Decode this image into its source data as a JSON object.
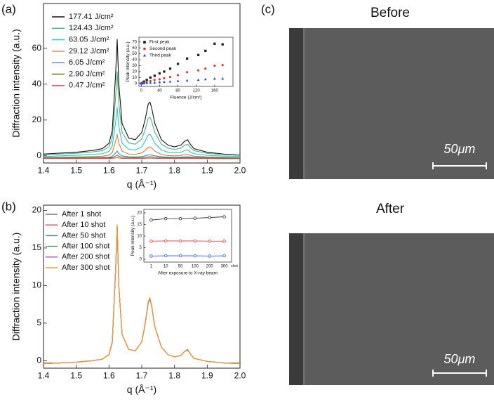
{
  "chart_data": [
    {
      "type": "line",
      "xlabel": "q (Å⁻¹)",
      "ylabel": "Diffraction intensity (a.u.)",
      "legend": "upper left",
      "xlim": [
        1.4,
        2.0
      ],
      "xticks": [
        1.4,
        1.5,
        1.6,
        1.7,
        1.8,
        1.9,
        {
          "value": 2,
          "label": "2.0"
        }
      ],
      "ylim": [
        -4,
        85
      ],
      "yticks": [
        0,
        20,
        40,
        60
      ],
      "x": [
        1.4,
        1.45,
        1.5,
        1.55,
        1.58,
        1.6,
        1.61,
        1.62,
        1.625,
        1.63,
        1.64,
        1.66,
        1.68,
        1.7,
        1.71,
        1.72,
        1.725,
        1.73,
        1.74,
        1.76,
        1.78,
        1.8,
        1.82,
        1.83,
        1.84,
        1.85,
        1.86,
        1.9,
        1.95,
        2.0
      ],
      "series": [
        {
          "name": "177.41 J/cm²",
          "color": "#111111",
          "values": [
            1,
            1.5,
            2,
            3,
            4,
            7,
            14,
            45,
            65,
            40,
            18,
            10,
            9,
            13,
            20,
            29,
            30,
            27,
            18,
            9,
            6,
            5,
            6,
            8,
            9,
            6,
            4,
            2,
            1,
            0.5
          ]
        },
        {
          "name": "124.43 J/cm²",
          "color": "#4fb07a",
          "values": [
            0.5,
            1,
            1.4,
            2.2,
            2.9,
            5,
            10,
            32,
            47,
            29,
            13,
            7.2,
            6.5,
            9.4,
            14.4,
            21,
            21.6,
            19.4,
            13,
            6.5,
            4.3,
            3.6,
            4.3,
            5.8,
            6.5,
            4.3,
            2.9,
            1.4,
            0.7,
            0.3
          ]
        },
        {
          "name": "63.05 J/cm²",
          "color": "#27c4cf",
          "values": [
            -0.5,
            0,
            0.3,
            0.8,
            1.2,
            2.5,
            5.4,
            18.4,
            27,
            16.3,
            7,
            3.7,
            3.3,
            5,
            8,
            11.7,
            12.1,
            10.8,
            7,
            3.3,
            2,
            1.6,
            2,
            2.9,
            3.3,
            2,
            1.2,
            0.3,
            -0.1,
            -0.3
          ]
        },
        {
          "name": "29.12 J/cm²",
          "color": "#e07b39",
          "values": [
            -1,
            -0.8,
            -0.6,
            -0.4,
            -0.2,
            0.4,
            1.8,
            8,
            12,
            7,
            2.6,
            1,
            0.8,
            1.6,
            3,
            4.8,
            5,
            4.4,
            2.6,
            0.8,
            0.2,
            0,
            0.2,
            0.6,
            0.8,
            0.2,
            -0.2,
            -0.6,
            -0.8,
            -1
          ]
        },
        {
          "name": "6.05 J/cm²",
          "color": "#4a86d8",
          "values": [
            -1.2,
            -1.1,
            -1,
            -1,
            -0.9,
            -0.8,
            -0.3,
            1.5,
            2.7,
            1.2,
            0,
            -0.5,
            -0.6,
            -0.4,
            0,
            0.5,
            0.6,
            0.4,
            0,
            -0.5,
            -0.7,
            -0.8,
            -0.7,
            -0.6,
            -0.5,
            -0.7,
            -0.8,
            -1,
            -1.1,
            -1.2
          ]
        },
        {
          "name": "2.90 J/cm²",
          "color": "#5f7d1f",
          "values": [
            -1.3,
            -1.3,
            -1.2,
            -1.2,
            -1.2,
            -1.1,
            -1,
            -0.2,
            0.4,
            -0.2,
            -0.8,
            -1,
            -1.1,
            -1,
            -0.8,
            -0.6,
            -0.5,
            -0.6,
            -0.8,
            -1,
            -1.1,
            -1.2,
            -1.1,
            -1.1,
            -1,
            -1.1,
            -1.2,
            -1.3,
            -1.3,
            -1.4
          ]
        },
        {
          "name": "0.47 J/cm²",
          "color": "#e0404a",
          "values": [
            -1.5,
            -1.5,
            -1.5,
            -1.5,
            -1.5,
            -1.5,
            -1.4,
            -1.2,
            -1,
            -1.2,
            -1.4,
            -1.5,
            -1.5,
            -1.5,
            -1.4,
            -1.3,
            -1.3,
            -1.3,
            -1.4,
            -1.5,
            -1.5,
            -1.5,
            -1.5,
            -1.5,
            -1.5,
            -1.5,
            -1.5,
            -1.5,
            -1.6,
            -1.6
          ]
        }
      ]
    },
    {
      "type": "scatter",
      "xlabel": "Fluence (J/cm²)",
      "ylabel": "Peak intensity (a.u.)",
      "legend": "upper left",
      "xlim": [
        -5,
        200
      ],
      "xticks": [
        0,
        40,
        80,
        120,
        160
      ],
      "ylim": [
        -5,
        78
      ],
      "yticks": [
        0,
        10,
        20,
        30,
        40,
        50,
        60,
        70
      ],
      "x": [
        0.47,
        2.9,
        6.05,
        12,
        20,
        29.12,
        40,
        50,
        63.05,
        80,
        100,
        124.43,
        140,
        160,
        177.41
      ],
      "series": [
        {
          "name": "First peak",
          "color": "#222222",
          "marker": "square",
          "values": [
            0,
            1,
            3,
            6,
            10,
            13,
            17,
            20,
            25,
            33,
            42,
            48,
            55,
            67,
            66
          ]
        },
        {
          "name": "Second peak",
          "color": "#e03030",
          "marker": "circle",
          "values": [
            0,
            0.5,
            1,
            2,
            4,
            6,
            7,
            9,
            11,
            14,
            19,
            22,
            25,
            30,
            31
          ]
        },
        {
          "name": "Third peak",
          "color": "#2050e0",
          "marker": "triangle",
          "values": [
            0,
            0,
            0.3,
            0.6,
            1,
            1.5,
            2,
            2.5,
            3,
            4,
            5,
            6,
            7,
            8,
            8
          ]
        }
      ]
    },
    {
      "type": "line",
      "xlabel": "q (Å⁻¹)",
      "ylabel": "Diffraction intensity (a.u.)",
      "legend": "upper left",
      "xlim": [
        1.4,
        2.0
      ],
      "xticks": [
        1.4,
        1.5,
        1.6,
        1.7,
        1.8,
        1.9,
        {
          "value": 2,
          "label": "2.0"
        }
      ],
      "ylim": [
        -1,
        20.7
      ],
      "yticks": [
        0,
        5,
        10,
        15,
        20
      ],
      "x": [
        1.4,
        1.45,
        1.5,
        1.55,
        1.58,
        1.6,
        1.61,
        1.62,
        1.625,
        1.63,
        1.64,
        1.66,
        1.68,
        1.7,
        1.71,
        1.72,
        1.725,
        1.73,
        1.74,
        1.76,
        1.78,
        1.8,
        1.82,
        1.83,
        1.84,
        1.85,
        1.86,
        1.9,
        1.95,
        2.0
      ],
      "series": [
        {
          "name": "After 1 shot",
          "color": "#7a7a7a",
          "values": [
            -0.4,
            -0.3,
            -0.2,
            0,
            0.2,
            0.8,
            2.5,
            12,
            18,
            10,
            3.5,
            1.5,
            1.3,
            2.5,
            4.8,
            7.8,
            8.3,
            7.4,
            4.5,
            1.8,
            0.8,
            0.5,
            0.7,
            1.2,
            1.5,
            0.8,
            0.3,
            -0.1,
            -0.3,
            -0.4
          ]
        },
        {
          "name": "After 10 shot",
          "color": "#e04848",
          "values": [
            -0.4,
            -0.3,
            -0.2,
            0,
            0.2,
            0.8,
            2.5,
            11.9,
            17.9,
            10,
            3.5,
            1.5,
            1.3,
            2.5,
            4.8,
            7.8,
            8.3,
            7.4,
            4.5,
            1.8,
            0.8,
            0.5,
            0.7,
            1.2,
            1.5,
            0.8,
            0.3,
            -0.1,
            -0.3,
            -0.4
          ]
        },
        {
          "name": "After 50 shot",
          "color": "#3a6fe0",
          "values": [
            -0.4,
            -0.3,
            -0.2,
            0,
            0.2,
            0.8,
            2.4,
            11.8,
            17.7,
            9.9,
            3.5,
            1.5,
            1.3,
            2.5,
            4.7,
            7.7,
            8.2,
            7.3,
            4.5,
            1.8,
            0.8,
            0.5,
            0.7,
            1.2,
            1.4,
            0.8,
            0.3,
            -0.1,
            -0.3,
            -0.4
          ]
        },
        {
          "name": "After 100 shot",
          "color": "#3aa060",
          "values": [
            -0.3,
            -0.3,
            -0.2,
            0,
            0.2,
            0.8,
            2.5,
            12,
            18,
            10,
            3.5,
            1.5,
            1.3,
            2.5,
            4.8,
            7.8,
            8.3,
            7.4,
            4.5,
            1.8,
            0.8,
            0.5,
            0.7,
            1.2,
            1.5,
            0.8,
            0.3,
            -0.1,
            -0.3,
            -0.3
          ]
        },
        {
          "name": "After 200 shot",
          "color": "#b050c8",
          "values": [
            -0.4,
            -0.3,
            -0.2,
            0,
            0.2,
            0.8,
            2.5,
            11.9,
            17.8,
            10,
            3.5,
            1.5,
            1.3,
            2.5,
            4.8,
            7.8,
            8.3,
            7.4,
            4.5,
            1.8,
            0.8,
            0.5,
            0.7,
            1.2,
            1.5,
            0.8,
            0.3,
            -0.1,
            -0.3,
            -0.4
          ]
        },
        {
          "name": "After 300 shot",
          "color": "#f0a020",
          "values": [
            -0.4,
            -0.3,
            -0.2,
            0,
            0.2,
            0.8,
            2.6,
            12.1,
            18.1,
            10.1,
            3.5,
            1.5,
            1.3,
            2.5,
            4.8,
            7.9,
            8.4,
            7.4,
            4.5,
            1.8,
            0.8,
            0.5,
            0.7,
            1.2,
            1.5,
            0.8,
            0.3,
            -0.1,
            -0.3,
            -0.4
          ]
        }
      ]
    },
    {
      "type": "line",
      "xlabel": "After exposure to X-ray beam",
      "ylabel": "Peak intensity (a.u.)",
      "x_unit_label": "shot",
      "categories": [
        "1",
        "10",
        "50",
        "100",
        "200",
        "300"
      ],
      "ylim": [
        -1.2,
        21.5
      ],
      "yticks": [
        0,
        5,
        10,
        15,
        20
      ],
      "series": [
        {
          "name": "First peak",
          "color": "#222222",
          "marker": "circle",
          "values": [
            16.9,
            17.5,
            17.5,
            17.7,
            18,
            18.3
          ]
        },
        {
          "name": "Second peak",
          "color": "#e03030",
          "marker": "circle",
          "values": [
            7.8,
            7.9,
            7.9,
            7.9,
            7.8,
            7.8
          ]
        },
        {
          "name": "Third peak",
          "color": "#2050e0",
          "marker": "circle",
          "values": [
            1.4,
            1.5,
            1.5,
            1.5,
            1.4,
            1.5
          ]
        }
      ]
    }
  ],
  "panel_labels": [
    "(a)",
    "(b)",
    "(c)"
  ],
  "images": [
    {
      "title": "Before",
      "scale_bar": "50μm"
    },
    {
      "title": "After",
      "scale_bar": "50μm"
    }
  ]
}
